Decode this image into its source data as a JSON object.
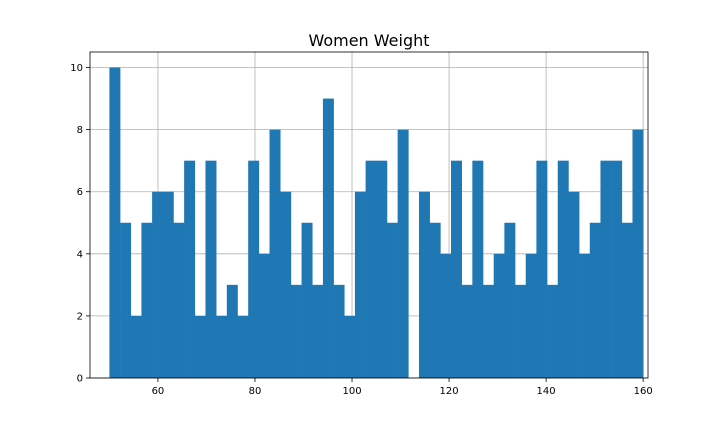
{
  "chart_data": {
    "type": "bar",
    "title": "Women Weight",
    "xlabel": "",
    "ylabel": "",
    "bin_start": 50,
    "bin_width": 2.2,
    "values": [
      10,
      5,
      2,
      5,
      6,
      6,
      5,
      7,
      2,
      7,
      2,
      3,
      2,
      7,
      4,
      8,
      6,
      3,
      5,
      3,
      9,
      3,
      2,
      6,
      7,
      7,
      5,
      8,
      0,
      6,
      5,
      4,
      7,
      3,
      7,
      3,
      4,
      5,
      3,
      4,
      7,
      3,
      7,
      6,
      4,
      5,
      7,
      7,
      5,
      8
    ],
    "xlim": [
      46,
      161
    ],
    "ylim": [
      0,
      10.5
    ],
    "xticks": [
      60,
      80,
      100,
      120,
      140,
      160
    ],
    "yticks": [
      0,
      2,
      4,
      6,
      8,
      10
    ],
    "grid": true,
    "bar_color": "#1f77b4"
  }
}
